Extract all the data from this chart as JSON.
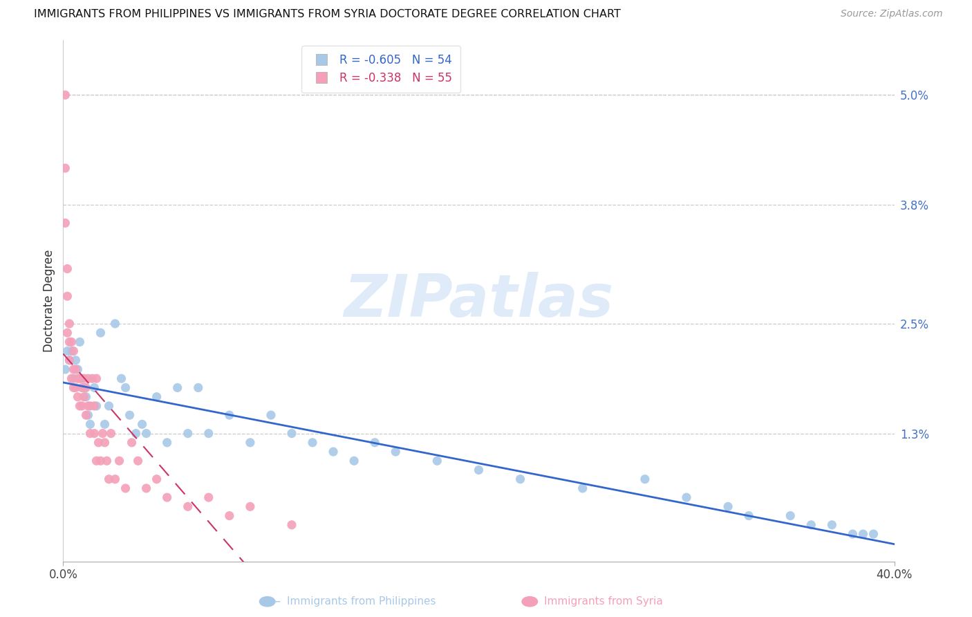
{
  "title": "IMMIGRANTS FROM PHILIPPINES VS IMMIGRANTS FROM SYRIA DOCTORATE DEGREE CORRELATION CHART",
  "source": "Source: ZipAtlas.com",
  "ylabel": "Doctorate Degree",
  "right_yticks": [
    0.0,
    0.013,
    0.025,
    0.038,
    0.05
  ],
  "right_yticklabels": [
    "",
    "1.3%",
    "2.5%",
    "3.8%",
    "5.0%"
  ],
  "xlim": [
    0.0,
    0.4
  ],
  "ylim": [
    -0.001,
    0.056
  ],
  "philippines_color": "#a8c8e8",
  "philippines_line_color": "#3366cc",
  "syria_color": "#f4a0b8",
  "syria_line_color": "#cc3366",
  "legend_label_1": "R = -0.605   N = 54",
  "legend_label_2": "R = -0.338   N = 55",
  "watermark": "ZIPatlas",
  "philippines_x": [
    0.001,
    0.002,
    0.003,
    0.004,
    0.005,
    0.006,
    0.007,
    0.008,
    0.009,
    0.01,
    0.011,
    0.012,
    0.013,
    0.015,
    0.016,
    0.018,
    0.02,
    0.022,
    0.025,
    0.028,
    0.03,
    0.032,
    0.035,
    0.038,
    0.04,
    0.045,
    0.05,
    0.055,
    0.06,
    0.065,
    0.07,
    0.08,
    0.09,
    0.1,
    0.11,
    0.12,
    0.13,
    0.14,
    0.15,
    0.16,
    0.18,
    0.2,
    0.22,
    0.25,
    0.28,
    0.3,
    0.32,
    0.33,
    0.35,
    0.36,
    0.37,
    0.38,
    0.385,
    0.39
  ],
  "philippines_y": [
    0.02,
    0.022,
    0.021,
    0.022,
    0.019,
    0.021,
    0.02,
    0.023,
    0.019,
    0.018,
    0.017,
    0.015,
    0.014,
    0.018,
    0.016,
    0.024,
    0.014,
    0.016,
    0.025,
    0.019,
    0.018,
    0.015,
    0.013,
    0.014,
    0.013,
    0.017,
    0.012,
    0.018,
    0.013,
    0.018,
    0.013,
    0.015,
    0.012,
    0.015,
    0.013,
    0.012,
    0.011,
    0.01,
    0.012,
    0.011,
    0.01,
    0.009,
    0.008,
    0.007,
    0.008,
    0.006,
    0.005,
    0.004,
    0.004,
    0.003,
    0.003,
    0.002,
    0.002,
    0.002
  ],
  "syria_x": [
    0.001,
    0.001,
    0.001,
    0.002,
    0.002,
    0.002,
    0.003,
    0.003,
    0.003,
    0.004,
    0.004,
    0.005,
    0.005,
    0.005,
    0.006,
    0.006,
    0.007,
    0.007,
    0.008,
    0.008,
    0.009,
    0.009,
    0.01,
    0.01,
    0.011,
    0.011,
    0.012,
    0.012,
    0.013,
    0.013,
    0.014,
    0.015,
    0.015,
    0.016,
    0.016,
    0.017,
    0.018,
    0.019,
    0.02,
    0.021,
    0.022,
    0.023,
    0.025,
    0.027,
    0.03,
    0.033,
    0.036,
    0.04,
    0.045,
    0.05,
    0.06,
    0.07,
    0.08,
    0.09,
    0.11
  ],
  "syria_y": [
    0.05,
    0.042,
    0.036,
    0.031,
    0.028,
    0.024,
    0.025,
    0.023,
    0.021,
    0.023,
    0.019,
    0.022,
    0.02,
    0.018,
    0.02,
    0.018,
    0.019,
    0.017,
    0.019,
    0.016,
    0.018,
    0.016,
    0.019,
    0.017,
    0.018,
    0.015,
    0.016,
    0.019,
    0.016,
    0.013,
    0.019,
    0.016,
    0.013,
    0.01,
    0.019,
    0.012,
    0.01,
    0.013,
    0.012,
    0.01,
    0.008,
    0.013,
    0.008,
    0.01,
    0.007,
    0.012,
    0.01,
    0.007,
    0.008,
    0.006,
    0.005,
    0.006,
    0.004,
    0.005,
    0.003
  ]
}
